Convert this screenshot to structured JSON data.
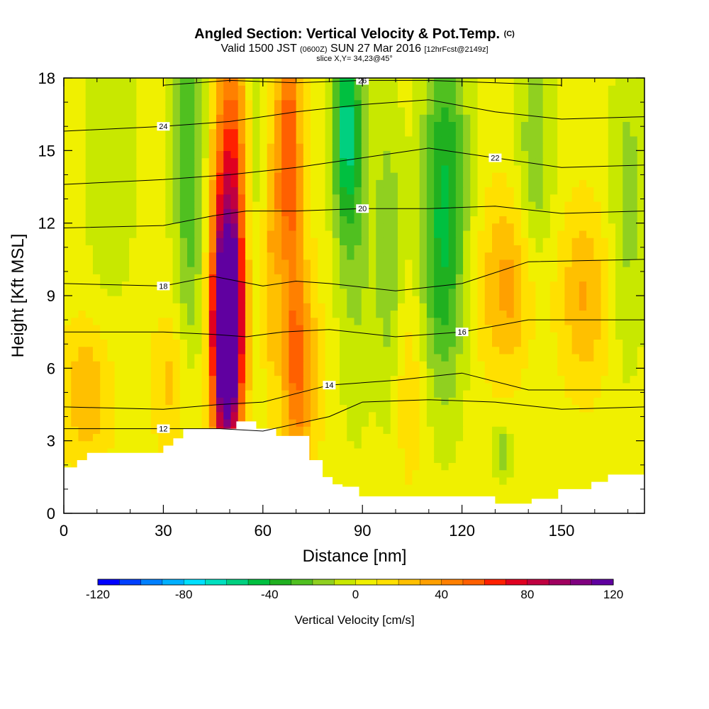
{
  "header": {
    "title": "Angled Section: Vertical Velocity & Pot.Temp.",
    "title_mark": "(C)",
    "valid_prefix": "Valid 1500 JST",
    "valid_utc": "(0600Z)",
    "valid_date": "SUN 27 Mar 2016",
    "valid_fcst": "[12hrFcst@2149z]",
    "slice": "slice X,Y= 34,23@45°"
  },
  "chart_data": {
    "type": "heatmap",
    "xlabel": "Distance [nm]",
    "ylabel": "Height [Kft MSL]",
    "xlim": [
      0,
      175
    ],
    "ylim": [
      0,
      18
    ],
    "x_ticks": [
      "0",
      "30",
      "60",
      "90",
      "120",
      "150"
    ],
    "y_ticks": [
      "0",
      "3",
      "6",
      "9",
      "12",
      "15",
      "18"
    ],
    "colorbar": {
      "label": "Vertical Velocity [cm/s]",
      "range": [
        -120,
        120
      ],
      "ticks": [
        "-120",
        "-80",
        "-40",
        "0",
        "40",
        "80",
        "120"
      ],
      "colors": [
        "#0000ff",
        "#0040ff",
        "#0080ff",
        "#00b0ff",
        "#00e0ff",
        "#00e0c0",
        "#00d080",
        "#00c040",
        "#20b020",
        "#50c020",
        "#90d020",
        "#c8e800",
        "#f0f000",
        "#ffe000",
        "#ffc000",
        "#ffa000",
        "#ff8000",
        "#ff6000",
        "#ff2000",
        "#e00020",
        "#c00040",
        "#a00060",
        "#800080",
        "#6000a0"
      ]
    },
    "terrain_kft": [
      [
        0,
        1.9
      ],
      [
        4,
        2.2
      ],
      [
        7,
        2.5
      ],
      [
        30,
        2.8
      ],
      [
        33,
        3.1
      ],
      [
        36,
        3.5
      ],
      [
        52,
        3.8
      ],
      [
        58,
        3.5
      ],
      [
        64,
        3.2
      ],
      [
        71,
        3.2
      ],
      [
        74,
        2.2
      ],
      [
        78,
        1.5
      ],
      [
        81,
        1.2
      ],
      [
        84,
        1.1
      ],
      [
        89,
        0.7
      ],
      [
        129,
        0.7
      ],
      [
        130,
        0.4
      ],
      [
        141,
        0.6
      ],
      [
        149,
        1
      ],
      [
        159,
        1.3
      ],
      [
        164,
        1.6
      ],
      [
        175,
        1.6
      ]
    ],
    "velocity_features": [
      {
        "x": 49,
        "y": 7.5,
        "peak": 120,
        "sx": 2.3,
        "sy": 2.2
      },
      {
        "x": 49,
        "y": 8,
        "peak": 80,
        "sx": 3.5,
        "sy": 5
      },
      {
        "x": 51,
        "y": 13,
        "peak": 40,
        "sx": 3.5,
        "sy": 7
      },
      {
        "x": 68,
        "y": 15,
        "peak": 50,
        "sx": 2.5,
        "sy": 5
      },
      {
        "x": 70,
        "y": 6,
        "peak": 45,
        "sx": 4,
        "sy": 3
      },
      {
        "x": 63,
        "y": 11,
        "peak": 30,
        "sx": 3,
        "sy": 4
      },
      {
        "x": 7,
        "y": 5,
        "peak": 25,
        "sx": 5,
        "sy": 2
      },
      {
        "x": 33,
        "y": 5.5,
        "peak": 20,
        "sx": 4,
        "sy": 2
      },
      {
        "x": 135,
        "y": 9.5,
        "peak": 30,
        "sx": 7,
        "sy": 2.5
      },
      {
        "x": 157,
        "y": 9,
        "peak": 25,
        "sx": 5,
        "sy": 2.5
      },
      {
        "x": 104,
        "y": 5.5,
        "peak": 15,
        "sx": 5,
        "sy": 3
      },
      {
        "x": 38,
        "y": 15,
        "peak": -35,
        "sx": 3.5,
        "sy": 7
      },
      {
        "x": 14,
        "y": 15,
        "peak": -15,
        "sx": 6,
        "sy": 5
      },
      {
        "x": 58,
        "y": 13,
        "peak": -20,
        "sx": 3,
        "sy": 6
      },
      {
        "x": 66,
        "y": 8,
        "peak": -30,
        "sx": 2,
        "sy": 3
      },
      {
        "x": 85,
        "y": 16,
        "peak": -50,
        "sx": 3,
        "sy": 3
      },
      {
        "x": 88,
        "y": 12,
        "peak": -20,
        "sx": 4,
        "sy": 6
      },
      {
        "x": 98,
        "y": 10,
        "peak": -25,
        "sx": 3,
        "sy": 5
      },
      {
        "x": 115,
        "y": 14,
        "peak": -40,
        "sx": 5,
        "sy": 5
      },
      {
        "x": 113,
        "y": 8.5,
        "peak": -20,
        "sx": 5,
        "sy": 4
      },
      {
        "x": 142,
        "y": 14,
        "peak": -25,
        "sx": 4,
        "sy": 5
      },
      {
        "x": 132,
        "y": 2.5,
        "peak": -25,
        "sx": 2,
        "sy": 0.8
      },
      {
        "x": 170,
        "y": 13,
        "peak": -20,
        "sx": 4,
        "sy": 5
      }
    ],
    "isentropes": [
      {
        "label": "12",
        "pts": [
          [
            0,
            3.5
          ],
          [
            30,
            3.5
          ],
          [
            47,
            3.5
          ],
          [
            60,
            3.4
          ],
          [
            80,
            4
          ],
          [
            90,
            4.6
          ],
          [
            110,
            4.7
          ],
          [
            130,
            4.6
          ],
          [
            150,
            4.3
          ],
          [
            175,
            4.4
          ]
        ]
      },
      {
        "label": "14",
        "pts": [
          [
            0,
            4.4
          ],
          [
            30,
            4.3
          ],
          [
            47,
            4.5
          ],
          [
            60,
            4.6
          ],
          [
            80,
            5.3
          ],
          [
            100,
            5.5
          ],
          [
            120,
            5.8
          ],
          [
            140,
            5.1
          ],
          [
            175,
            5.1
          ]
        ]
      },
      {
        "label": "16",
        "pts": [
          [
            0,
            7.5
          ],
          [
            30,
            7.5
          ],
          [
            45,
            7.4
          ],
          [
            55,
            7.3
          ],
          [
            66,
            7.5
          ],
          [
            80,
            7.6
          ],
          [
            100,
            7.3
          ],
          [
            120,
            7.5
          ],
          [
            140,
            8
          ],
          [
            175,
            8
          ]
        ]
      },
      {
        "label": "18",
        "pts": [
          [
            0,
            9.5
          ],
          [
            30,
            9.4
          ],
          [
            45,
            9.8
          ],
          [
            60,
            9.4
          ],
          [
            70,
            9.6
          ],
          [
            80,
            9.5
          ],
          [
            100,
            9.2
          ],
          [
            120,
            9.5
          ],
          [
            140,
            10.4
          ],
          [
            175,
            10.5
          ]
        ]
      },
      {
        "label": "20",
        "pts": [
          [
            0,
            11.8
          ],
          [
            30,
            11.9
          ],
          [
            45,
            12.3
          ],
          [
            55,
            12.5
          ],
          [
            70,
            12.5
          ],
          [
            90,
            12.6
          ],
          [
            110,
            12.6
          ],
          [
            130,
            12.7
          ],
          [
            150,
            12.4
          ],
          [
            175,
            12.5
          ]
        ]
      },
      {
        "label": "22",
        "pts": [
          [
            0,
            13.6
          ],
          [
            30,
            13.8
          ],
          [
            50,
            14
          ],
          [
            70,
            14.3
          ],
          [
            90,
            14.7
          ],
          [
            110,
            15.1
          ],
          [
            130,
            14.7
          ],
          [
            150,
            14.3
          ],
          [
            175,
            14.4
          ]
        ]
      },
      {
        "label": "24",
        "pts": [
          [
            0,
            15.8
          ],
          [
            30,
            16
          ],
          [
            50,
            16.2
          ],
          [
            70,
            16.6
          ],
          [
            90,
            16.9
          ],
          [
            110,
            17.1
          ],
          [
            130,
            16.6
          ],
          [
            150,
            16.3
          ],
          [
            175,
            16.4
          ]
        ]
      },
      {
        "label": "26",
        "pts": [
          [
            30,
            17.7
          ],
          [
            50,
            17.9
          ],
          [
            70,
            17.8
          ],
          [
            90,
            17.9
          ],
          [
            110,
            17.9
          ],
          [
            130,
            17.8
          ],
          [
            150,
            17.7
          ]
        ]
      }
    ]
  }
}
